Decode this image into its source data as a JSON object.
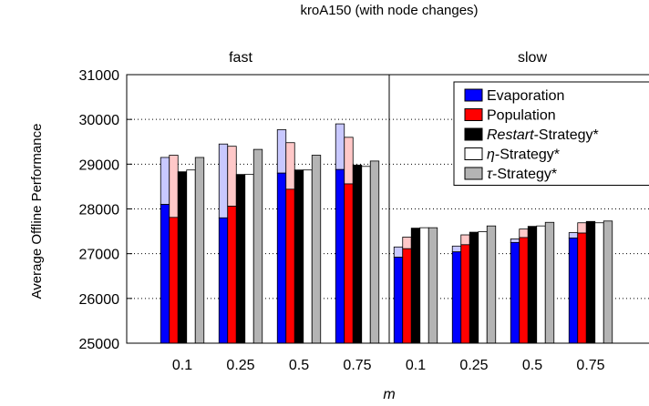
{
  "chart_data": {
    "type": "bar",
    "title": "kroA150 (with node changes)",
    "xlabel": "m",
    "ylabel": "Average Offline Performance",
    "ylim": [
      25000,
      31000
    ],
    "yticks": [
      "25000",
      "26000",
      "27000",
      "28000",
      "29000",
      "30000",
      "31000"
    ],
    "grid": "dotted horizontal",
    "legend_position": "top-right",
    "panels": [
      {
        "label": "fast",
        "categories": [
          "0.1",
          "0.25",
          "0.5",
          "0.75"
        ]
      },
      {
        "label": "slow",
        "categories": [
          "0.1",
          "0.25",
          "0.5",
          "0.75"
        ]
      }
    ],
    "series": [
      {
        "name_prefix": "",
        "name_italic": "",
        "name_suffix": "Evaporation",
        "color": "#0000ff",
        "fast": [
          28100,
          27800,
          28800,
          28880
        ],
        "slow": [
          26920,
          27040,
          27250,
          27350
        ],
        "fast_shaded_top": [
          29150,
          29450,
          29770,
          29900
        ],
        "slow_shaded_top": [
          27150,
          27170,
          27330,
          27470
        ],
        "shade_color": "#c8c8ff"
      },
      {
        "name_prefix": "",
        "name_italic": "",
        "name_suffix": "Population",
        "color": "#ff0000",
        "fast": [
          27810,
          28060,
          28440,
          28560
        ],
        "slow": [
          27110,
          27200,
          27360,
          27460
        ],
        "fast_shaded_top": [
          29200,
          29400,
          29480,
          29600
        ],
        "slow_shaded_top": [
          27370,
          27420,
          27550,
          27690
        ],
        "shade_color": "#ffc8c8"
      },
      {
        "name_prefix": "",
        "name_italic": "Restart",
        "name_suffix": "-Strategy*",
        "color": "#000000",
        "fast": [
          28830,
          28770,
          28870,
          28980
        ],
        "slow": [
          27570,
          27480,
          27610,
          27720
        ]
      },
      {
        "name_prefix": "",
        "name_italic": "η",
        "name_suffix": "-Strategy*",
        "color": "#ffffff",
        "fast": [
          28870,
          28770,
          28870,
          28950
        ],
        "slow": [
          27580,
          27490,
          27620,
          27690
        ]
      },
      {
        "name_prefix": "",
        "name_italic": "τ",
        "name_suffix": "-Strategy*",
        "color": "#b4b4b4",
        "fast": [
          29150,
          29330,
          29200,
          29070
        ],
        "slow": [
          27580,
          27620,
          27700,
          27730
        ]
      }
    ]
  }
}
